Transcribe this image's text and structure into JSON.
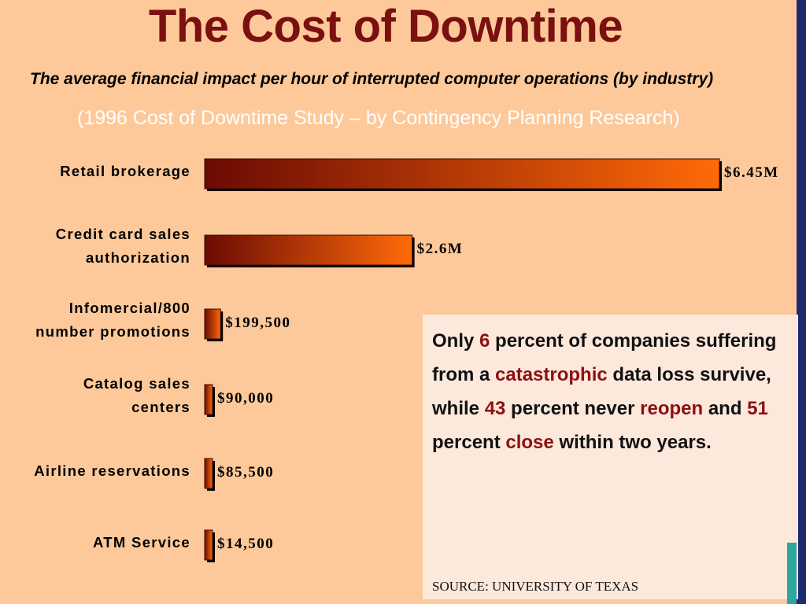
{
  "title": "The Cost of Downtime",
  "subtitle": "The average financial impact per hour of interrupted computer operations (by industry)",
  "study": "(1996 Cost of Downtime Study – by Contingency Planning Research)",
  "chart_data": {
    "type": "bar",
    "orientation": "horizontal",
    "categories": [
      [
        "Retail brokerage"
      ],
      [
        "Credit card sales",
        "authorization"
      ],
      [
        "Infomercial/800",
        "number promotions"
      ],
      [
        "Catalog sales",
        "centers"
      ],
      [
        "Airline reservations"
      ],
      [
        "ATM Service"
      ]
    ],
    "values": [
      6450000,
      2600000,
      199500,
      90000,
      85500,
      14500
    ],
    "value_labels": [
      "$6.45M",
      "$2.6M",
      "$199,500",
      "$90,000",
      "$85,500",
      "$14,500"
    ],
    "xlim": [
      0,
      6450000
    ],
    "grid": false,
    "legend": "none",
    "colors": {
      "bar_start": "#6b0a04",
      "bar_end": "#ff6a08",
      "shadow": "#000000"
    }
  },
  "note": {
    "parts": [
      {
        "t": "Only ",
        "h": false
      },
      {
        "t": "6",
        "h": true
      },
      {
        "t": " percent of companies suffering from a ",
        "h": false
      },
      {
        "t": "catastrophic",
        "h": true
      },
      {
        "t": " data loss survive, while ",
        "h": false
      },
      {
        "t": "43",
        "h": true
      },
      {
        "t": " percent never ",
        "h": false
      },
      {
        "t": "reopen",
        "h": true
      },
      {
        "t": " and ",
        "h": false
      },
      {
        "t": "51",
        "h": true
      },
      {
        "t": " percent ",
        "h": false
      },
      {
        "t": "close",
        "h": true
      },
      {
        "t": " within two years.",
        "h": false
      }
    ],
    "source": "SOURCE: UNIVERSITY OF TEXAS"
  }
}
